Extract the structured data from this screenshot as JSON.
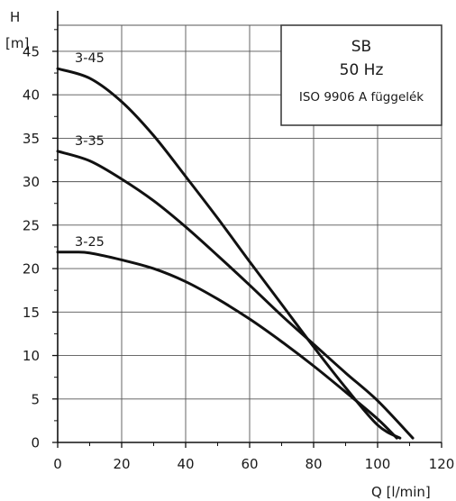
{
  "chart_data": {
    "type": "line",
    "xlabel": "Q [l/min]",
    "ylabel_top": "H",
    "ylabel_bottom": "[m]",
    "xlim": [
      0,
      120
    ],
    "ylim": [
      0,
      48
    ],
    "x_ticks": [
      0,
      20,
      40,
      60,
      80,
      100,
      120
    ],
    "y_ticks": [
      0,
      5,
      10,
      15,
      20,
      25,
      30,
      35,
      40,
      45
    ],
    "grid": true,
    "legend_box": {
      "line1": "SB",
      "line2": "50 Hz",
      "line3": "ISO 9906 A függelék"
    },
    "series": [
      {
        "name": "3-45",
        "x": [
          0,
          10,
          20,
          30,
          40,
          50,
          60,
          70,
          80,
          90,
          100,
          107
        ],
        "y": [
          43.0,
          41.9,
          39.2,
          35.3,
          30.6,
          25.8,
          20.8,
          15.9,
          11.0,
          6.3,
          2.0,
          0.5
        ]
      },
      {
        "name": "3-35",
        "x": [
          0,
          10,
          20,
          30,
          40,
          50,
          60,
          70,
          80,
          90,
          100,
          111
        ],
        "y": [
          33.5,
          32.4,
          30.3,
          27.8,
          24.8,
          21.5,
          18.1,
          14.6,
          11.3,
          8.0,
          4.8,
          0.5
        ]
      },
      {
        "name": "3-25",
        "x": [
          0,
          5,
          10,
          20,
          30,
          40,
          50,
          60,
          70,
          80,
          90,
          100,
          106
        ],
        "y": [
          21.9,
          21.9,
          21.8,
          21.0,
          20.0,
          18.5,
          16.5,
          14.2,
          11.6,
          8.8,
          5.8,
          2.7,
          0.5
        ]
      }
    ],
    "line_color": "#111111",
    "grid_color": "#555555"
  }
}
